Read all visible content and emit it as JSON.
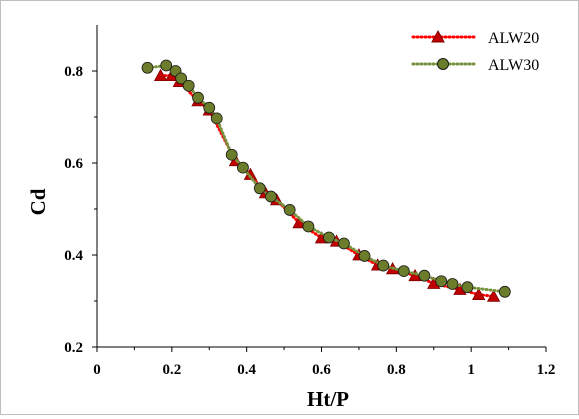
{
  "chart_data": {
    "type": "scatter",
    "title": "",
    "xlabel": "Ht/P",
    "ylabel": "Cd",
    "xlim": [
      0,
      1.2
    ],
    "ylim": [
      0.2,
      0.9
    ],
    "x_ticks": [
      0,
      0.2,
      0.4,
      0.6,
      0.8,
      1,
      1.2
    ],
    "x_tick_labels": [
      "0",
      "0.2",
      "0.4",
      "0.6",
      "0.8",
      "1",
      "1.2"
    ],
    "y_ticks": [
      0.2,
      0.4,
      0.6,
      0.8
    ],
    "y_tick_labels": [
      "0.2",
      "0.4",
      "0.6",
      "0.8"
    ],
    "grid": false,
    "legend_position": "top-right",
    "series": [
      {
        "name": "ALW20",
        "marker": "triangle",
        "line_style": "dotted",
        "marker_color": "#c00000",
        "line_color": "#ff0000",
        "x": [
          0.17,
          0.2,
          0.22,
          0.27,
          0.3,
          0.37,
          0.41,
          0.45,
          0.48,
          0.54,
          0.6,
          0.64,
          0.7,
          0.75,
          0.79,
          0.85,
          0.9,
          0.97,
          1.02,
          1.06
        ],
        "y": [
          0.79,
          0.79,
          0.777,
          0.735,
          0.715,
          0.605,
          0.575,
          0.535,
          0.52,
          0.47,
          0.437,
          0.43,
          0.4,
          0.378,
          0.37,
          0.355,
          0.338,
          0.325,
          0.314,
          0.31
        ]
      },
      {
        "name": "ALW30",
        "marker": "circle",
        "line_style": "dotted",
        "marker_color": "#6b7d2a",
        "line_color": "#76923c",
        "x": [
          0.135,
          0.185,
          0.21,
          0.225,
          0.245,
          0.27,
          0.3,
          0.32,
          0.36,
          0.39,
          0.435,
          0.465,
          0.515,
          0.565,
          0.62,
          0.66,
          0.715,
          0.765,
          0.82,
          0.875,
          0.92,
          0.95,
          0.99,
          1.09
        ],
        "y": [
          0.807,
          0.812,
          0.8,
          0.784,
          0.768,
          0.742,
          0.72,
          0.697,
          0.618,
          0.59,
          0.545,
          0.527,
          0.498,
          0.462,
          0.438,
          0.425,
          0.398,
          0.377,
          0.365,
          0.355,
          0.343,
          0.337,
          0.33,
          0.32
        ]
      }
    ]
  }
}
